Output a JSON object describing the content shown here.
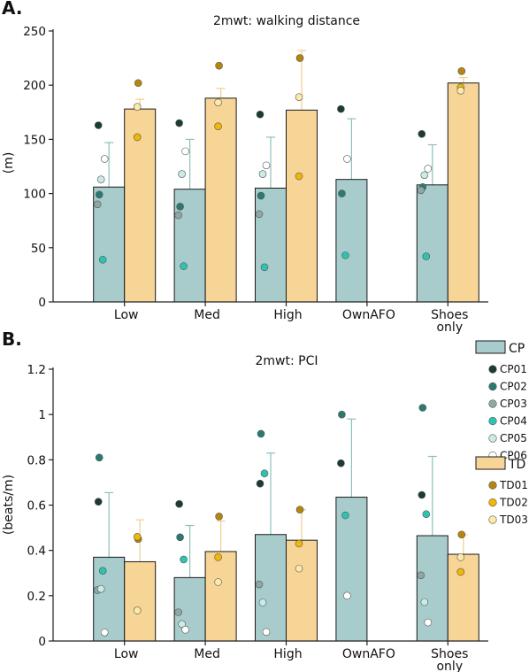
{
  "chart_data": [
    {
      "panel": "A.",
      "type": "bar",
      "title": "2mwt: walking distance",
      "ylabel": "(m)",
      "ylim": [
        0,
        250
      ],
      "yticks": [
        "0",
        "50",
        "100",
        "150",
        "200",
        "250"
      ],
      "categories": [
        [
          "Low"
        ],
        [
          "Med"
        ],
        [
          "High"
        ],
        [
          "OwnAFO"
        ],
        [
          "Shoes",
          "only"
        ]
      ],
      "series": [
        {
          "name": "CP",
          "color": "#a8cccb",
          "values": [
            106,
            104,
            105,
            113,
            108
          ],
          "err_upper": [
            147,
            150,
            152,
            169,
            145
          ]
        },
        {
          "name": "TD",
          "color": "#f7d597",
          "values": [
            178,
            188,
            177,
            null,
            202
          ],
          "err_upper": [
            187,
            197,
            232,
            null,
            207
          ]
        }
      ],
      "points": {
        "CP": [
          {
            "CP01": 163,
            "CP02": 99,
            "CP03": 90,
            "CP04": 39,
            "CP05": 113,
            "CP06": 132
          },
          {
            "CP01": 165,
            "CP02": 88,
            "CP03": 80,
            "CP04": 33,
            "CP05": 118,
            "CP06": 139
          },
          {
            "CP01": 173,
            "CP02": 98,
            "CP03": 81,
            "CP04": 32,
            "CP05": 118,
            "CP06": 126
          },
          {
            "CP01": 178,
            "CP02": 100,
            "CP04": 43,
            "CP06": 132
          },
          {
            "CP01": 155,
            "CP02": 106,
            "CP03": 103,
            "CP04": 42,
            "CP05": 117,
            "CP06": 123
          }
        ],
        "TD": [
          {
            "TD01": 202,
            "TD02": 152,
            "TD03": 180
          },
          {
            "TD01": 218,
            "TD02": 162,
            "TD03": 184
          },
          {
            "TD01": 225,
            "TD02": 116,
            "TD03": 189
          },
          null,
          {
            "TD01": 213,
            "TD02": 198,
            "TD03": 195
          }
        ]
      }
    },
    {
      "panel": "B.",
      "type": "bar",
      "title": "2mwt: PCI",
      "ylabel": "(beats/m)",
      "ylim": [
        0,
        1.2
      ],
      "yticks": [
        "0",
        "0.2",
        "0.4",
        "0.6",
        "0.8",
        "1",
        "1.2"
      ],
      "categories": [
        [
          "Low"
        ],
        [
          "Med"
        ],
        [
          "High"
        ],
        [
          "OwnAFO"
        ],
        [
          "Shoes",
          "only"
        ]
      ],
      "series": [
        {
          "name": "CP",
          "color": "#a8cccb",
          "values": [
            0.37,
            0.28,
            0.47,
            0.635,
            0.465
          ],
          "err_upper": [
            0.655,
            0.51,
            0.83,
            0.98,
            0.815
          ]
        },
        {
          "name": "TD",
          "color": "#f7d597",
          "values": [
            0.35,
            0.395,
            0.445,
            null,
            0.383
          ],
          "err_upper": [
            0.535,
            0.53,
            0.58,
            null,
            0.47
          ]
        }
      ],
      "points": {
        "CP": [
          {
            "CP01": 0.615,
            "CP02": 0.81,
            "CP03": 0.225,
            "CP04": 0.31,
            "CP05": 0.23,
            "CP06": 0.038
          },
          {
            "CP01": 0.605,
            "CP02": 0.458,
            "CP03": 0.127,
            "CP04": 0.36,
            "CP05": 0.075,
            "CP06": 0.05
          },
          {
            "CP01": 0.695,
            "CP02": 0.915,
            "CP03": 0.25,
            "CP04": 0.74,
            "CP05": 0.17,
            "CP06": 0.04
          },
          {
            "CP01": 0.785,
            "CP02": 1.0,
            "CP04": 0.555,
            "CP06": 0.2
          },
          {
            "CP01": 0.645,
            "CP02": 1.03,
            "CP03": 0.29,
            "CP04": 0.56,
            "CP05": 0.172,
            "CP06": 0.082
          }
        ],
        "TD": [
          {
            "TD01": 0.45,
            "TD02": 0.46,
            "TD03": 0.135
          },
          {
            "TD01": 0.55,
            "TD02": 0.37,
            "TD03": 0.26
          },
          {
            "TD01": 0.58,
            "TD02": 0.43,
            "TD03": 0.32
          },
          null,
          {
            "TD01": 0.47,
            "TD02": 0.305,
            "TD03": 0.37
          }
        ]
      }
    }
  ],
  "legend": {
    "groups": [
      {
        "name": "CP",
        "color": "#a8cccb",
        "items": [
          {
            "label": "CP01",
            "color": "#1c3b36"
          },
          {
            "label": "CP02",
            "color": "#2a7a72"
          },
          {
            "label": "CP03",
            "color": "#8fa7a5"
          },
          {
            "label": "CP04",
            "color": "#2ec2b1"
          },
          {
            "label": "CP05",
            "color": "#c9ece6"
          },
          {
            "label": "CP06",
            "color": "#ffffff"
          }
        ]
      },
      {
        "name": "TD",
        "color": "#f7d597",
        "items": [
          {
            "label": "TD01",
            "color": "#b5860b"
          },
          {
            "label": "TD02",
            "color": "#f2b705"
          },
          {
            "label": "TD03",
            "color": "#fde9a8"
          }
        ]
      }
    ]
  }
}
